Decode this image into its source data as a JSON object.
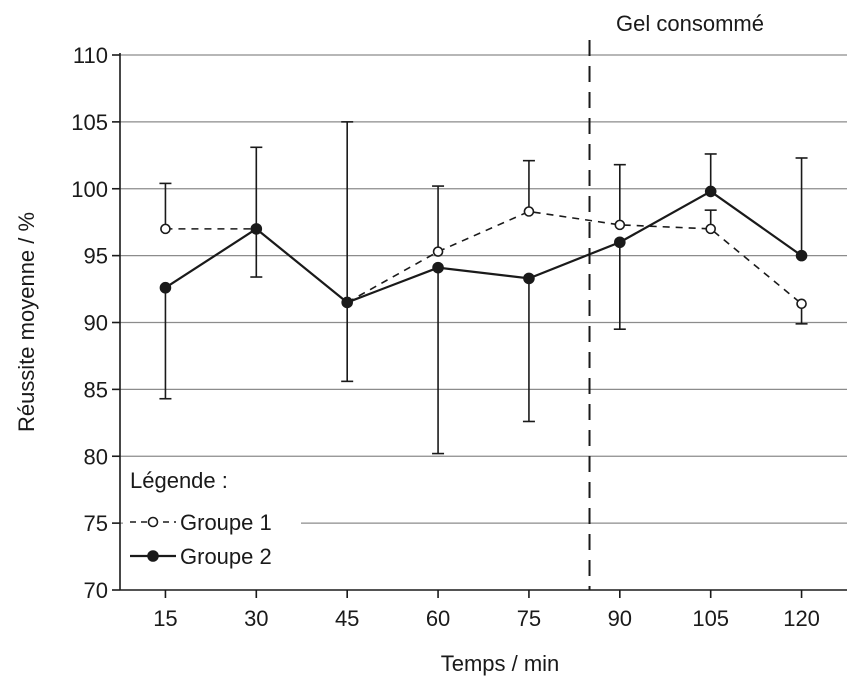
{
  "chart_data": {
    "type": "line",
    "xlabel": "Temps / min",
    "ylabel": "Réussite moyenne / %",
    "x": [
      15,
      30,
      45,
      60,
      75,
      90,
      105,
      120
    ],
    "ylim": [
      70,
      110
    ],
    "yticks": [
      70,
      75,
      80,
      85,
      90,
      95,
      100,
      105,
      110
    ],
    "grid": "horizontal",
    "series": [
      {
        "name": "Groupe 1",
        "style": "dashed",
        "marker": "open-circle",
        "values": [
          97.0,
          97.0,
          91.5,
          95.3,
          98.3,
          97.3,
          97.0,
          91.4
        ],
        "error_upper": [
          100.4,
          null,
          null,
          100.2,
          102.1,
          101.8,
          98.4,
          null
        ],
        "error_lower": [
          null,
          null,
          null,
          null,
          null,
          null,
          null,
          89.9
        ]
      },
      {
        "name": "Groupe 2",
        "style": "solid",
        "marker": "filled-circle",
        "values": [
          92.6,
          97.0,
          91.5,
          94.1,
          93.3,
          96.0,
          99.8,
          95.0
        ],
        "error_upper": [
          null,
          103.1,
          105.0,
          null,
          null,
          null,
          102.6,
          102.3
        ],
        "error_lower": [
          84.3,
          93.4,
          85.6,
          80.2,
          82.6,
          89.5,
          null,
          null
        ]
      }
    ],
    "annotation": {
      "text": "Gel consommé",
      "x": 85
    },
    "legend": {
      "title": "Légende :",
      "position": "bottom-left"
    }
  }
}
